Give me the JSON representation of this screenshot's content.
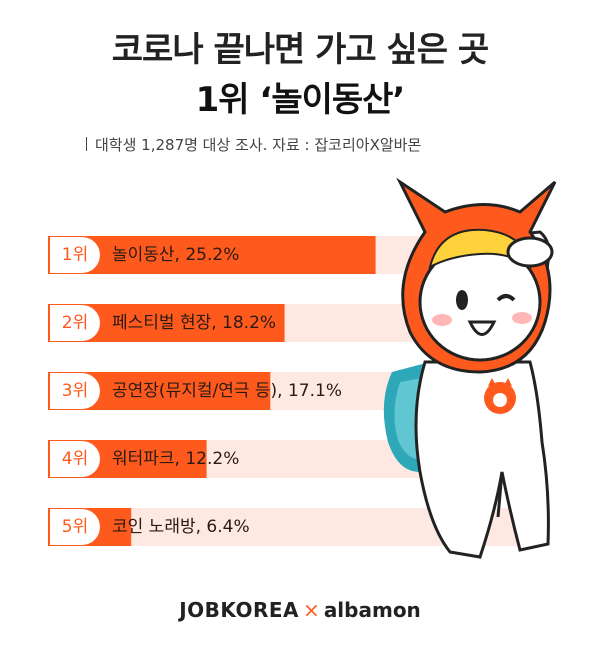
{
  "header": {
    "title_line1": "코로나 끝나면 가고 싶은 곳",
    "title_line2": "1위 ‘놀이동산’",
    "source": "대학생 1,287명 대상 조사. 자료 : 잡코리아X알바몬"
  },
  "colors": {
    "accent": "#ff5a1e",
    "track": "#fde9e2",
    "text": "#2a1a14"
  },
  "chart_data": {
    "type": "bar",
    "orientation": "horizontal",
    "xlim": [
      0,
      100
    ],
    "rows": [
      {
        "rank": "1위",
        "label": "놀이동산, 25.2%",
        "value": 25.2
      },
      {
        "rank": "2위",
        "label": "페스티벌 현장, 18.2%",
        "value": 18.2
      },
      {
        "rank": "3위",
        "label": "공연장(뮤지컬/연극 등), 17.1%",
        "value": 17.1
      },
      {
        "rank": "4위",
        "label": "워터파크, 12.2%",
        "value": 12.2
      },
      {
        "rank": "5위",
        "label": "코인 노래방, 6.4%",
        "value": 6.4
      }
    ]
  },
  "footer": {
    "brand1": "JOBKOREA",
    "separator": "×",
    "brand2": "albamon"
  },
  "mascot": {
    "icon": "cat-mascot-icon"
  }
}
